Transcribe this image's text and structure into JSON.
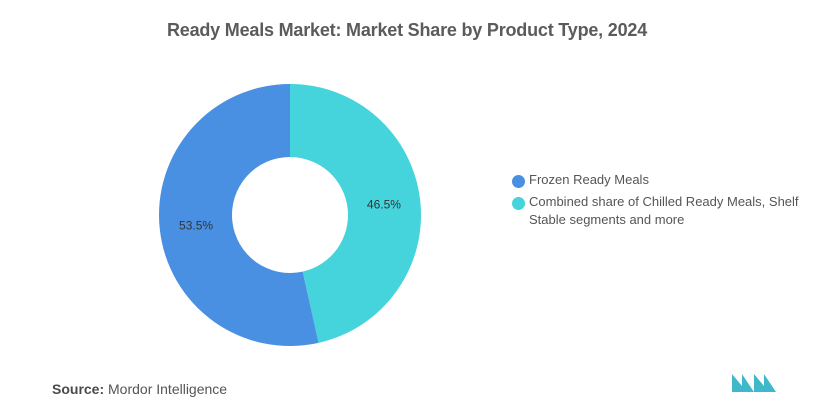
{
  "title": "Ready Meals Market: Market Share by Product Type, 2024",
  "chart_data": {
    "type": "pie",
    "donut": true,
    "title": "Ready Meals Market: Market Share by Product Type, 2024",
    "series": [
      {
        "name": "Combined share of Chilled Ready Meals, Shelf Stable segments and more",
        "value": 46.5,
        "label": "46.5%",
        "color": "#45d3dc"
      },
      {
        "name": "Frozen Ready Meals",
        "value": 53.5,
        "label": "53.5%",
        "color": "#4a90e2"
      }
    ],
    "legend": {
      "position": "right",
      "items": [
        {
          "label": "Frozen Ready Meals",
          "color": "#4a90e2"
        },
        {
          "label": "Combined share of Chilled Ready Meals, Shelf Stable segments and more",
          "color": "#45d3dc"
        }
      ]
    }
  },
  "source": {
    "label": "Source:",
    "text": "Mordor Intelligence"
  },
  "logo": {
    "icon": "mordor-intelligence-logo-icon",
    "color": "#3fb8c9"
  }
}
